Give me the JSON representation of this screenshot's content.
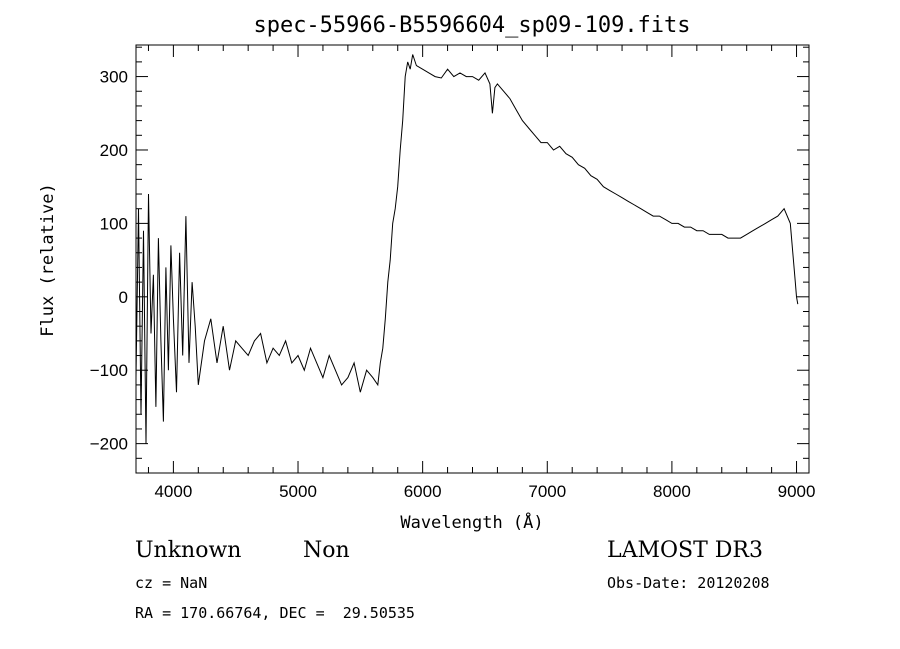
{
  "chart_data": {
    "type": "line",
    "title": "spec-55966-B5596604_sp09-109.fits",
    "xlabel": "Wavelength (Å)",
    "ylabel": "Flux (relative)",
    "xlim": [
      3700,
      9100
    ],
    "ylim": [
      -240,
      343
    ],
    "xticks": [
      4000,
      5000,
      6000,
      7000,
      8000,
      9000
    ],
    "yticks": [
      -200,
      -100,
      0,
      100,
      200,
      300
    ],
    "grid": false,
    "series": [
      {
        "x": [
          3700,
          3720,
          3740,
          3760,
          3780,
          3800,
          3820,
          3840,
          3860,
          3880,
          3900,
          3920,
          3940,
          3960,
          3980,
          4000,
          4025,
          4050,
          4075,
          4100,
          4125,
          4150,
          4175,
          4200,
          4250,
          4300,
          4350,
          4400,
          4450,
          4500,
          4550,
          4600,
          4650,
          4700,
          4750,
          4800,
          4850,
          4900,
          4950,
          5000,
          5050,
          5100,
          5150,
          5200,
          5250,
          5300,
          5350,
          5400,
          5450,
          5500,
          5550,
          5600,
          5640,
          5660,
          5680,
          5700,
          5720,
          5740,
          5760,
          5780,
          5800,
          5820,
          5840,
          5860,
          5880,
          5900,
          5920,
          5950,
          6000,
          6050,
          6100,
          6150,
          6200,
          6250,
          6300,
          6350,
          6400,
          6450,
          6500,
          6540,
          6560,
          6580,
          6600,
          6650,
          6700,
          6750,
          6800,
          6850,
          6900,
          6950,
          7000,
          7050,
          7100,
          7150,
          7200,
          7250,
          7300,
          7350,
          7400,
          7450,
          7500,
          7550,
          7600,
          7650,
          7700,
          7750,
          7800,
          7850,
          7900,
          7950,
          8000,
          8050,
          8100,
          8150,
          8200,
          8250,
          8300,
          8350,
          8400,
          8450,
          8500,
          8550,
          8600,
          8650,
          8700,
          8750,
          8800,
          8850,
          8900,
          8950,
          8970,
          8990,
          9000,
          9010
        ],
        "values": [
          -110,
          120,
          -160,
          90,
          -200,
          140,
          -50,
          30,
          -150,
          80,
          -60,
          -170,
          40,
          -100,
          70,
          -30,
          -130,
          60,
          -80,
          110,
          -90,
          20,
          -40,
          -120,
          -60,
          -30,
          -90,
          -40,
          -100,
          -60,
          -70,
          -80,
          -60,
          -50,
          -90,
          -70,
          -80,
          -60,
          -90,
          -80,
          -100,
          -70,
          -90,
          -110,
          -80,
          -100,
          -120,
          -110,
          -90,
          -130,
          -100,
          -110,
          -120,
          -90,
          -70,
          -30,
          20,
          50,
          100,
          120,
          150,
          200,
          240,
          300,
          320,
          310,
          330,
          315,
          310,
          305,
          300,
          298,
          310,
          300,
          305,
          300,
          300,
          295,
          305,
          290,
          250,
          285,
          290,
          280,
          270,
          255,
          240,
          230,
          220,
          210,
          210,
          200,
          205,
          195,
          190,
          180,
          175,
          165,
          160,
          150,
          145,
          140,
          135,
          130,
          125,
          120,
          115,
          110,
          110,
          105,
          100,
          100,
          95,
          95,
          90,
          90,
          85,
          85,
          85,
          80,
          80,
          80,
          85,
          90,
          95,
          100,
          105,
          110,
          120,
          100,
          60,
          20,
          0,
          -10
        ]
      }
    ],
    "info": {
      "object_class": "Unknown",
      "object_subclass": "Non",
      "survey": "LAMOST DR3",
      "cz": "cz = NaN",
      "obs_date": "Obs-Date: 20120208",
      "coords": "RA = 170.66764, DEC =  29.50535"
    }
  }
}
